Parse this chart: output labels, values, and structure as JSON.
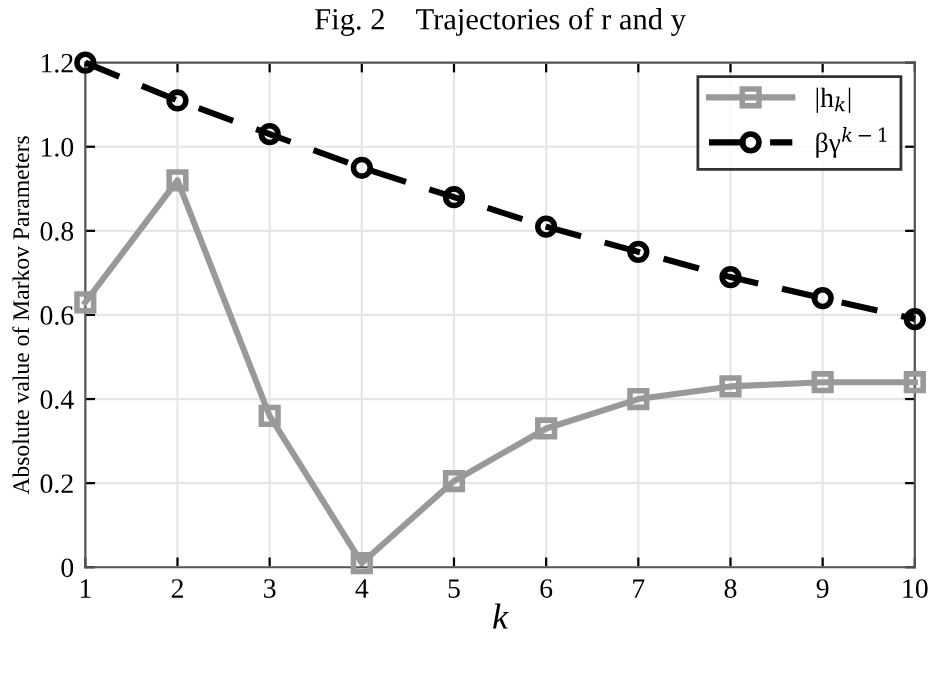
{
  "chart_data": {
    "type": "line",
    "title": "Fig. 2    Trajectories of r and y",
    "xlabel": "k",
    "ylabel": "Absolute value of Markov Parameters",
    "x": [
      1,
      2,
      3,
      4,
      5,
      6,
      7,
      8,
      9,
      10
    ],
    "series": [
      {
        "name": "|h$_{k}$|",
        "color": "#999999",
        "marker": "square",
        "line_style": "solid",
        "values": [
          0.63,
          0.92,
          0.36,
          0.01,
          0.205,
          0.33,
          0.4,
          0.43,
          0.44,
          0.44
        ]
      },
      {
        "name": "βγ$^{k−1}$",
        "color": "#000000",
        "marker": "circle",
        "line_style": "dashed",
        "values": [
          1.2,
          1.11,
          1.03,
          0.95,
          0.88,
          0.81,
          0.75,
          0.69,
          0.64,
          0.59
        ]
      }
    ],
    "xlim": [
      1,
      10
    ],
    "xticks": [
      1,
      2,
      3,
      4,
      5,
      6,
      7,
      8,
      9,
      10
    ],
    "ylim": [
      0,
      1.2
    ],
    "yticks": [
      0,
      {
        "value": 0.2,
        "label": "0.2"
      },
      {
        "value": 0.4,
        "label": "0.4"
      },
      {
        "value": 0.6,
        "label": "0.6"
      },
      {
        "value": 0.8,
        "label": "0.8"
      },
      {
        "value": 1.0,
        "label": "1.0"
      },
      {
        "value": 1.2,
        "label": "1.2"
      }
    ],
    "grid": true,
    "legend": "top right"
  }
}
